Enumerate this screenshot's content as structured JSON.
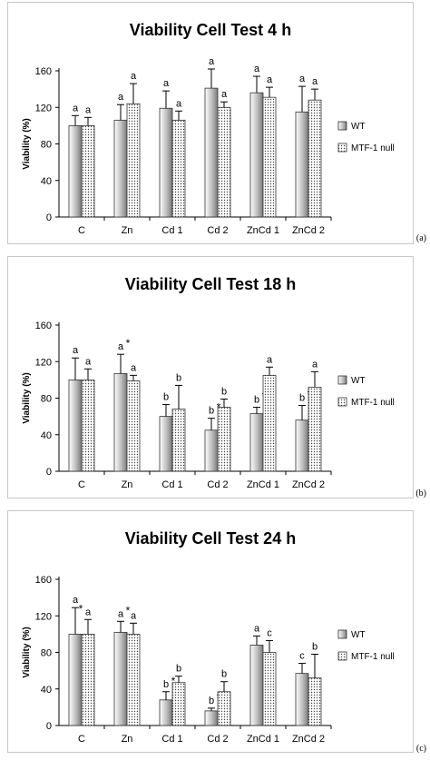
{
  "chart_data": [
    {
      "type": "bar",
      "panel_label": "(a)",
      "title": "Viability Cell Test 4 h",
      "ylabel": "Viability (%)",
      "xlabel": "",
      "ylim": [
        0,
        160
      ],
      "yticks": [
        0,
        40,
        80,
        120,
        160
      ],
      "grid": false,
      "legend": "right",
      "categories": [
        "C",
        "Zn",
        "Cd 1",
        "Cd 2",
        "ZnCd 1",
        "ZnCd 2"
      ],
      "series": [
        {
          "name": "WT",
          "values": [
            100,
            106,
            119,
            141,
            136,
            115
          ],
          "errors": [
            11,
            17,
            19,
            21,
            18,
            28
          ],
          "labels": [
            "a",
            "a",
            "a",
            "a",
            "a",
            "a"
          ],
          "marks": [
            "",
            "",
            "",
            "",
            "",
            ""
          ]
        },
        {
          "name": "MTF-1 null",
          "values": [
            100,
            124,
            106,
            120,
            131,
            128
          ],
          "errors": [
            9,
            22,
            10,
            6,
            11,
            12
          ],
          "labels": [
            "a",
            "a",
            "a",
            "a",
            "a",
            "a"
          ],
          "marks": [
            "",
            "",
            "",
            "",
            "",
            ""
          ]
        }
      ]
    },
    {
      "type": "bar",
      "panel_label": "(b)",
      "title": "Viability Cell Test 18 h",
      "ylabel": "Viability (%)",
      "xlabel": "",
      "ylim": [
        0,
        160
      ],
      "yticks": [
        0,
        40,
        80,
        120,
        160
      ],
      "grid": false,
      "legend": "right",
      "categories": [
        "C",
        "Zn",
        "Cd 1",
        "Cd 2",
        "ZnCd 1",
        "ZnCd 2"
      ],
      "series": [
        {
          "name": "WT",
          "values": [
            100,
            107,
            60,
            45,
            63,
            56
          ],
          "errors": [
            24,
            21,
            13,
            13,
            7,
            16
          ],
          "labels": [
            "a",
            "a",
            "b",
            "b",
            "b",
            "b"
          ],
          "marks": [
            "",
            "*",
            "",
            "*",
            "*",
            "*"
          ]
        },
        {
          "name": "MTF-1 null",
          "values": [
            100,
            99,
            68,
            70,
            105,
            92
          ],
          "errors": [
            12,
            6,
            26,
            9,
            9,
            17
          ],
          "labels": [
            "a",
            "a",
            "b",
            "b",
            "a",
            "a"
          ],
          "marks": [
            "",
            "",
            "",
            "",
            "",
            ""
          ]
        }
      ]
    },
    {
      "type": "bar",
      "panel_label": "(c)",
      "title": "Viability Cell Test 24 h",
      "ylabel": "Viability (%)",
      "xlabel": "",
      "ylim": [
        0,
        160
      ],
      "yticks": [
        0,
        40,
        80,
        120,
        160
      ],
      "grid": false,
      "legend": "right",
      "categories": [
        "C",
        "Zn",
        "Cd 1",
        "Cd 2",
        "ZnCd 1",
        "ZnCd 2"
      ],
      "series": [
        {
          "name": "WT",
          "values": [
            100,
            102,
            28,
            16,
            88,
            57
          ],
          "errors": [
            29,
            12,
            9,
            3,
            10,
            11
          ],
          "labels": [
            "a",
            "a",
            "b",
            "b",
            "a",
            "c"
          ],
          "marks": [
            "",
            "*",
            "*",
            "*",
            "",
            ""
          ]
        },
        {
          "name": "MTF-1 null",
          "values": [
            100,
            100,
            47,
            37,
            80,
            52
          ],
          "errors": [
            16,
            12,
            7,
            11,
            13,
            26
          ],
          "labels": [
            "a",
            "a",
            "b",
            "b",
            "c",
            "b"
          ],
          "marks": [
            "*",
            "",
            "",
            "",
            "",
            ""
          ]
        }
      ]
    }
  ]
}
